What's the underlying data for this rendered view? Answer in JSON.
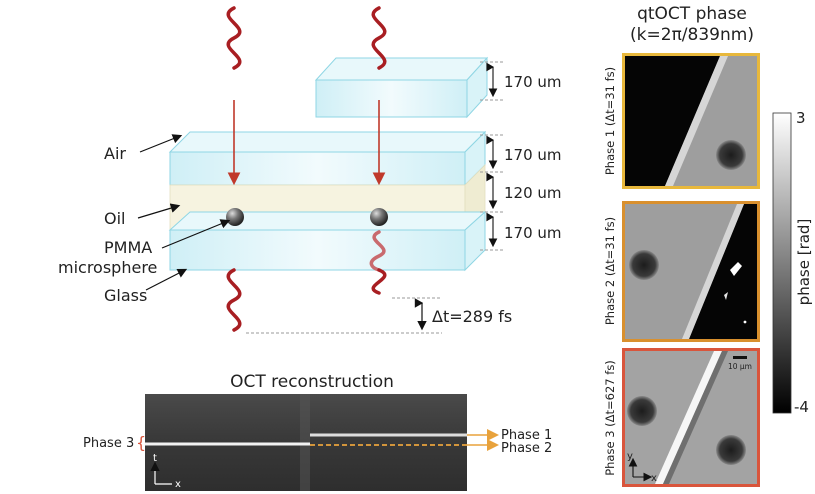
{
  "diagram": {
    "layer_labels": {
      "air": "Air",
      "oil": "Oil",
      "pmma": "PMMA",
      "microsphere": "microsphere",
      "glass": "Glass"
    },
    "thicknesses": {
      "top_glass": "170 um",
      "air": "170 um",
      "oil": "120 um",
      "glass": "170 um"
    },
    "delay": "Δt=289 fs"
  },
  "oct": {
    "title": "OCT reconstruction",
    "phase3_label": "Phase 3",
    "brace": "{",
    "phase1_label": "Phase 1",
    "phase2_label": "Phase 2",
    "axis_t": "t",
    "axis_x": "x"
  },
  "qtoct": {
    "title_line1": "qtOCT phase",
    "title_line2": "(k=2π/839nm)",
    "panels": [
      {
        "label": "Phase 1 (Δt=31 fs)",
        "border": "#e8b83c"
      },
      {
        "label": "Phase 2 (Δt=31 fs)",
        "border": "#d9902e"
      },
      {
        "label": "Phase 3 (Δt=627 fs)",
        "border": "#d9553c"
      }
    ],
    "scale_bar": "10 μm",
    "axis_y": "y",
    "axis_x": "x"
  },
  "colorbar": {
    "max": "3",
    "min": "-4",
    "label": "phase [rad]"
  },
  "colors": {
    "wave": "#a81e22",
    "glass_stroke": "#8fd6e4",
    "oil_fill": "#f6f3e0",
    "arrow_orange": "#e8a23c"
  }
}
